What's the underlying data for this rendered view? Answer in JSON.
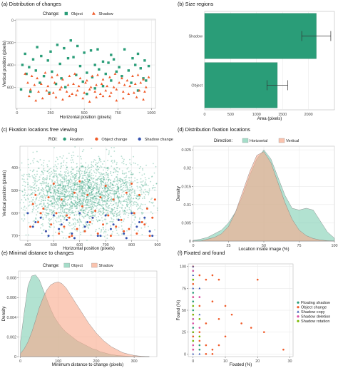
{
  "chart_data": [
    {
      "id": "a",
      "type": "scatter",
      "title": "(a) Distribution of changes",
      "xlabel": "Horizontal position (pixels)",
      "ylabel": "Vertical position (pixels)",
      "xlim": [
        -10,
        1030
      ],
      "ylim": [
        -10,
        790
      ],
      "x_ticks": [
        0,
        250,
        500,
        750,
        1000
      ],
      "y_ticks": [
        0,
        200,
        400,
        600
      ],
      "y_reversed": true,
      "legend": {
        "title": "Change:",
        "position": "top",
        "entries": [
          "Object",
          "Shadow"
        ]
      },
      "colors": {
        "Object": "#2a9d78",
        "Shadow": "#f05a28"
      },
      "series": [
        {
          "name": "Object",
          "marker": "square",
          "x": [
            400,
            300,
            600,
            450,
            150,
            60,
            180,
            250,
            350,
            500,
            550,
            700,
            800,
            900,
            120,
            230,
            380,
            420,
            640,
            720,
            860,
            950,
            40,
            90,
            320,
            470,
            580,
            680,
            760,
            880,
            980,
            140,
            260,
            520,
            610,
            740,
            830,
            920,
            70,
            200,
            330,
            440,
            560,
            660,
            780,
            960,
            170,
            290,
            490,
            700,
            850,
            940,
            30,
            100,
            360,
            580,
            640,
            900,
            240,
            520
          ],
          "y": [
            180,
            220,
            260,
            230,
            240,
            300,
            320,
            280,
            250,
            290,
            270,
            310,
            260,
            300,
            350,
            360,
            340,
            330,
            370,
            350,
            340,
            360,
            400,
            420,
            390,
            410,
            400,
            380,
            420,
            400,
            410,
            450,
            460,
            470,
            440,
            460,
            450,
            430,
            480,
            500,
            520,
            490,
            510,
            480,
            500,
            540,
            560,
            570,
            550,
            540,
            560,
            520,
            620,
            640,
            600,
            610,
            590,
            630,
            650,
            660
          ]
        },
        {
          "name": "Shadow",
          "marker": "triangle",
          "x": [
            60,
            110,
            150,
            210,
            260,
            300,
            340,
            390,
            430,
            470,
            520,
            560,
            600,
            640,
            690,
            730,
            780,
            820,
            860,
            900,
            940,
            980,
            80,
            130,
            180,
            230,
            280,
            330,
            380,
            420,
            460,
            510,
            550,
            590,
            630,
            670,
            720,
            760,
            800,
            840,
            880,
            920,
            960,
            100,
            160,
            220,
            270,
            320,
            370,
            410,
            450,
            500,
            540,
            580,
            620,
            660,
            700,
            740,
            790,
            830,
            870,
            910,
            950,
            90,
            190,
            290,
            390,
            490,
            590,
            690,
            790,
            890,
            140,
            340,
            540,
            740,
            940,
            240,
            440,
            640
          ],
          "y": [
            480,
            500,
            520,
            470,
            510,
            490,
            530,
            500,
            480,
            520,
            540,
            500,
            490,
            530,
            510,
            480,
            520,
            540,
            500,
            490,
            530,
            510,
            560,
            580,
            570,
            590,
            560,
            600,
            580,
            570,
            590,
            560,
            600,
            580,
            570,
            590,
            600,
            560,
            580,
            590,
            570,
            560,
            600,
            620,
            640,
            630,
            650,
            620,
            640,
            660,
            630,
            650,
            620,
            640,
            660,
            630,
            650,
            620,
            640,
            660,
            650,
            630,
            640,
            680,
            700,
            690,
            680,
            700,
            690,
            680,
            700,
            690,
            720,
            710,
            730,
            720,
            710,
            660,
            670,
            680
          ]
        }
      ]
    },
    {
      "id": "b",
      "type": "bar",
      "orientation": "horizontal",
      "title": "(b) Size regions",
      "xlabel": "Area (pixels)",
      "ylabel": "",
      "categories": [
        "Shadow",
        "Object"
      ],
      "values": [
        2150,
        1400
      ],
      "error": [
        280,
        200
      ],
      "xlim": [
        0,
        2500
      ],
      "x_ticks": [
        0,
        500,
        1000,
        1500,
        2000
      ],
      "colors": {
        "bar": "#2a9d78"
      }
    },
    {
      "id": "c",
      "type": "scatter",
      "title": "(c) Fixation locations free viewing",
      "xlabel": "Horizontal position (pixels)",
      "ylabel": "Vertical position (pixels)",
      "xlim": [
        370,
        900
      ],
      "ylim": [
        305,
        720
      ],
      "x_ticks": [
        400,
        500,
        600,
        700,
        800,
        900
      ],
      "y_ticks": [
        400,
        500,
        600,
        700
      ],
      "y_reversed": true,
      "legend": {
        "title": "ROI:",
        "position": "top",
        "entries": [
          "Fixation",
          "Object change",
          "Shadow change"
        ]
      },
      "colors": {
        "Fixation": "#2a9d78",
        "Object change": "#f05a28",
        "Shadow change": "#3553b0"
      },
      "series": [
        {
          "name": "Fixation",
          "distribution": {
            "center_x": 620,
            "center_y": 520,
            "sd_x": 130,
            "sd_y": 75
          }
        },
        {
          "name": "Object change",
          "x": [
            420,
            460,
            510,
            560,
            610,
            660,
            710,
            760,
            810,
            860,
            440,
            490,
            540,
            590,
            640,
            690,
            740,
            790,
            840,
            880,
            470,
            520,
            570,
            620,
            670,
            720,
            770,
            820,
            870,
            430,
            480,
            530,
            580,
            630,
            680,
            730,
            780,
            830,
            500,
            600,
            700,
            800,
            450,
            550,
            650,
            750,
            850,
            410,
            890,
            560
          ],
          "y": [
            560,
            580,
            600,
            620,
            570,
            590,
            610,
            630,
            600,
            580,
            640,
            650,
            660,
            670,
            640,
            650,
            660,
            670,
            640,
            620,
            680,
            690,
            700,
            680,
            690,
            700,
            680,
            690,
            700,
            520,
            530,
            540,
            510,
            520,
            530,
            540,
            510,
            520,
            470,
            460,
            480,
            470,
            600,
            610,
            620,
            630,
            650,
            660,
            540,
            705
          ]
        },
        {
          "name": "Shadow change",
          "x": [
            400,
            450,
            500,
            550,
            600,
            650,
            700,
            750,
            800,
            850,
            420,
            520,
            620,
            720,
            820,
            470,
            570,
            670,
            770,
            870,
            430,
            530,
            630,
            730,
            830,
            480,
            580,
            680,
            780,
            880
          ],
          "y": [
            600,
            620,
            610,
            630,
            600,
            620,
            610,
            630,
            600,
            620,
            660,
            670,
            660,
            670,
            660,
            680,
            690,
            700,
            690,
            680,
            640,
            650,
            640,
            650,
            640,
            700,
            710,
            700,
            710,
            700
          ]
        }
      ]
    },
    {
      "id": "d",
      "type": "area",
      "title": "(d) Distribution fixation locations",
      "xlabel": "Location inside image (%)",
      "ylabel": "Density",
      "xlim": [
        0,
        100
      ],
      "ylim": [
        0,
        0.026
      ],
      "x_ticks": [
        0,
        25,
        50,
        75,
        100
      ],
      "y_ticks": [
        0.0,
        0.005,
        0.01,
        0.015,
        0.02,
        0.025
      ],
      "legend": {
        "title": "Direction:",
        "position": "top",
        "entries": [
          "Horizontal",
          "Vertical"
        ]
      },
      "colors": {
        "Horizontal": "#7fcfb2",
        "Vertical": "#f8a98b"
      },
      "x": [
        0,
        5,
        10,
        15,
        20,
        25,
        30,
        35,
        40,
        45,
        50,
        55,
        60,
        65,
        70,
        75,
        80,
        85,
        90,
        95,
        100
      ],
      "series": [
        {
          "name": "Horizontal",
          "values": [
            0.0002,
            0.0005,
            0.001,
            0.002,
            0.003,
            0.005,
            0.008,
            0.0125,
            0.018,
            0.0225,
            0.025,
            0.0225,
            0.0175,
            0.0125,
            0.009,
            0.0085,
            0.009,
            0.0085,
            0.0055,
            0.0025,
            0.0008
          ]
        },
        {
          "name": "Vertical",
          "values": [
            0.0,
            0.0,
            0.0005,
            0.001,
            0.002,
            0.004,
            0.008,
            0.0135,
            0.019,
            0.0235,
            0.0245,
            0.0215,
            0.016,
            0.0105,
            0.006,
            0.003,
            0.0015,
            0.0007,
            0.0003,
            0.0001,
            0.0
          ]
        }
      ]
    },
    {
      "id": "e",
      "type": "area",
      "title": "(e) Minimal distance to changes",
      "xlabel": "Minimum distance to change (pixels)",
      "ylabel": "Density",
      "xlim": [
        -5,
        360
      ],
      "ylim": [
        0,
        0.0087
      ],
      "x_ticks": [
        0,
        100,
        200,
        300
      ],
      "y_ticks": [
        0.0,
        0.002,
        0.004,
        0.006,
        0.008
      ],
      "legend": {
        "title": "Change:",
        "position": "top",
        "entries": [
          "Object",
          "Shadow"
        ]
      },
      "colors": {
        "Object": "#7fcfb2",
        "Shadow": "#f8a98b"
      },
      "x": [
        0,
        10,
        20,
        30,
        40,
        50,
        60,
        70,
        80,
        90,
        100,
        110,
        120,
        130,
        140,
        150,
        160,
        170,
        180,
        190,
        200,
        210,
        220,
        230,
        240,
        250,
        260,
        270,
        280,
        290,
        300,
        310,
        320,
        330,
        340
      ],
      "series": [
        {
          "name": "Object",
          "values": [
            0.0015,
            0.0045,
            0.0072,
            0.0082,
            0.0083,
            0.0078,
            0.0068,
            0.0058,
            0.0048,
            0.004,
            0.0034,
            0.0029,
            0.0025,
            0.0022,
            0.0019,
            0.0016,
            0.0014,
            0.0012,
            0.001,
            0.0008,
            0.0007,
            0.0005,
            0.0004,
            0.0003,
            0.0002,
            0.00015,
            0.0001,
            7e-05,
            5e-05,
            3e-05,
            2e-05,
            1e-05,
            0.0,
            0.0,
            0.0
          ]
        },
        {
          "name": "Shadow",
          "values": [
            0.0003,
            0.0008,
            0.0015,
            0.0025,
            0.0037,
            0.005,
            0.006,
            0.0068,
            0.0073,
            0.0075,
            0.0076,
            0.0074,
            0.007,
            0.0064,
            0.0058,
            0.0052,
            0.0046,
            0.004,
            0.0034,
            0.0029,
            0.0024,
            0.002,
            0.0016,
            0.0013,
            0.001,
            0.0008,
            0.0006,
            0.0004,
            0.0003,
            0.0002,
            0.00012,
            7e-05,
            4e-05,
            2e-05,
            0.0
          ]
        }
      ]
    },
    {
      "id": "f",
      "type": "scatter",
      "title": "(f) Fixated and found",
      "xlabel": "Fixated (%)",
      "ylabel": "Found (%)",
      "xlim": [
        -1.5,
        31
      ],
      "ylim": [
        -3,
        103
      ],
      "x_ticks": [
        0,
        10,
        20,
        30
      ],
      "y_ticks": [
        0,
        25,
        50,
        75,
        100
      ],
      "legend": {
        "title": "",
        "position": "right",
        "entries": [
          "Floating shadow",
          "Object change",
          "Shadow copy",
          "Shadow deletion",
          "Shadow rotation"
        ]
      },
      "colors": {
        "Floating shadow": "#2a9d78",
        "Object change": "#f05a28",
        "Shadow copy": "#3553b0",
        "Shadow deletion": "#d94fa3",
        "Shadow rotation": "#7ab800"
      },
      "series": [
        {
          "name": "Floating shadow",
          "x": [
            0,
            0,
            0,
            0,
            0,
            0,
            2,
            2,
            0,
            0
          ],
          "y": [
            70,
            60,
            50,
            40,
            30,
            20,
            10,
            5,
            85,
            95
          ]
        },
        {
          "name": "Object change",
          "x": [
            0,
            0,
            0,
            0,
            2,
            2,
            4,
            4,
            6,
            6,
            8,
            8,
            10,
            10,
            12,
            15,
            18,
            20,
            22,
            28,
            0,
            2,
            4,
            6,
            8,
            0,
            2,
            4,
            6
          ],
          "y": [
            100,
            80,
            65,
            45,
            90,
            55,
            85,
            35,
            90,
            60,
            85,
            40,
            55,
            20,
            45,
            35,
            30,
            85,
            25,
            5,
            5,
            15,
            10,
            5,
            10,
            20,
            25,
            0,
            0
          ]
        },
        {
          "name": "Shadow copy",
          "x": [
            0,
            0,
            0,
            2,
            0,
            0,
            2,
            0,
            2,
            0
          ],
          "y": [
            100,
            90,
            75,
            75,
            55,
            25,
            45,
            15,
            0,
            0
          ]
        },
        {
          "name": "Shadow deletion",
          "x": [
            0,
            0,
            0,
            2,
            0,
            2,
            0,
            0
          ],
          "y": [
            95,
            65,
            40,
            65,
            35,
            30,
            10,
            5
          ]
        },
        {
          "name": "Shadow rotation",
          "x": [
            0,
            0,
            0,
            2,
            0,
            2,
            0
          ],
          "y": [
            85,
            55,
            25,
            20,
            45,
            40,
            15
          ]
        }
      ]
    }
  ]
}
